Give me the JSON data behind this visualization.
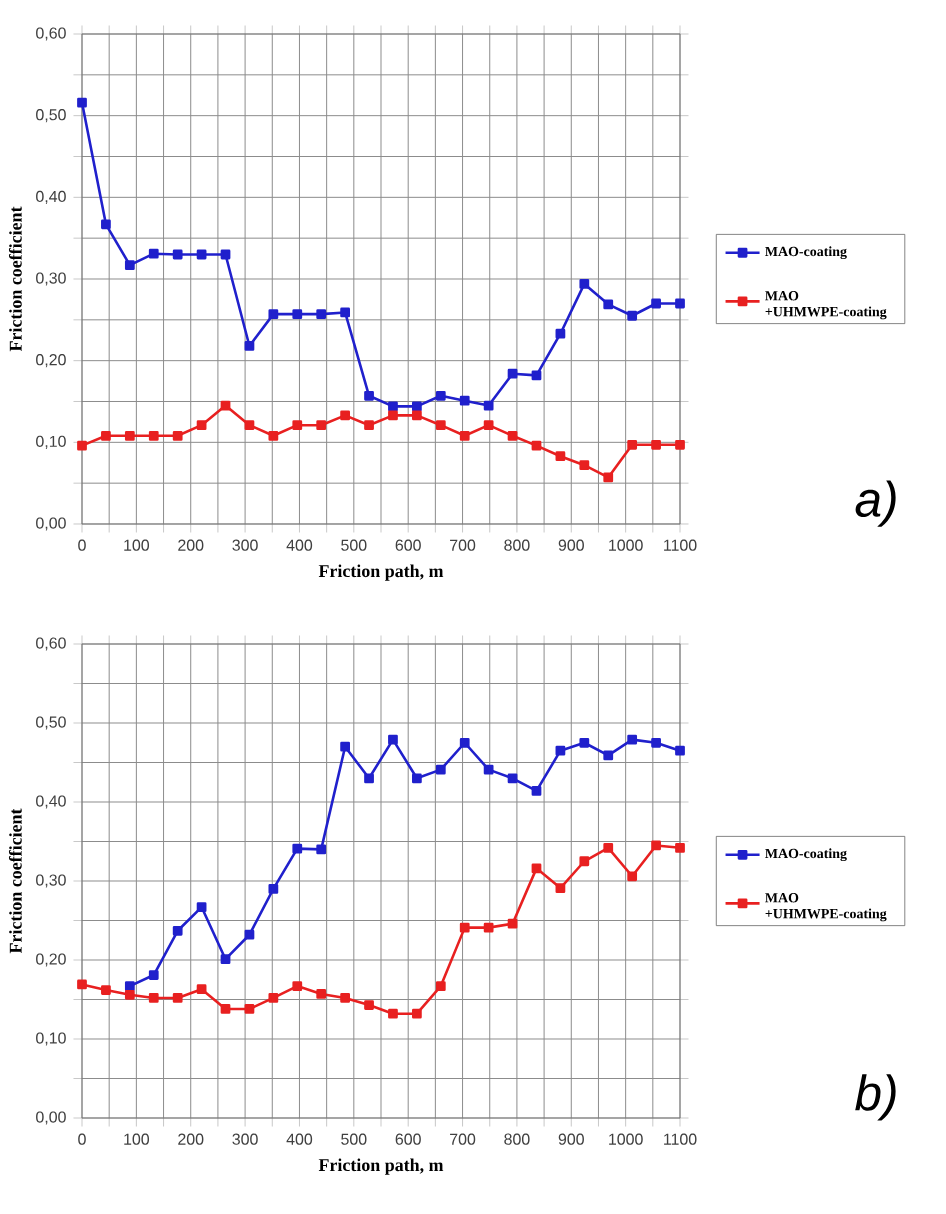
{
  "chart_data": [
    {
      "type": "line",
      "xlabel": "Friction path, m",
      "ylabel": "Friction coefficient",
      "annotations": [
        "a)"
      ],
      "x": [
        0,
        44,
        88,
        132,
        176,
        220,
        264,
        308,
        352,
        396,
        440,
        484,
        528,
        572,
        616,
        660,
        704,
        748,
        792,
        836,
        880,
        924,
        968,
        1012,
        1056,
        1100
      ],
      "series": [
        {
          "name": "MAO-coating",
          "color": "#2020cc",
          "values": [
            0.516,
            0.367,
            0.317,
            0.331,
            0.33,
            0.33,
            0.33,
            0.218,
            0.257,
            0.257,
            0.257,
            0.259,
            0.157,
            0.144,
            0.144,
            0.157,
            0.151,
            0.145,
            0.184,
            0.182,
            0.233,
            0.294,
            0.269,
            0.255,
            0.27,
            0.27
          ]
        },
        {
          "name": "MAO +UHMWPE-coating",
          "color": "#e82020",
          "values": [
            0.096,
            0.108,
            0.108,
            0.108,
            0.108,
            0.121,
            0.145,
            0.121,
            0.108,
            0.121,
            0.121,
            0.133,
            0.121,
            0.133,
            0.133,
            0.121,
            0.108,
            0.121,
            0.108,
            0.096,
            0.083,
            0.072,
            0.057,
            0.097,
            0.097,
            0.097
          ]
        }
      ],
      "xlim": [
        0,
        1100
      ],
      "xticks": [
        0,
        {
          "value": 50,
          "label": null
        },
        100,
        {
          "value": 150,
          "label": null
        },
        200,
        {
          "value": 250,
          "label": null
        },
        300,
        {
          "value": 350,
          "label": null
        },
        400,
        {
          "value": 450,
          "label": null
        },
        500,
        {
          "value": 550,
          "label": null
        },
        600,
        {
          "value": 650,
          "label": null
        },
        700,
        {
          "value": 750,
          "label": null
        },
        800,
        {
          "value": 850,
          "label": null
        },
        900,
        {
          "value": 950,
          "label": null
        },
        1000,
        {
          "value": 1050,
          "label": null
        },
        1100
      ],
      "ylim": [
        0,
        0.6
      ],
      "yticks": [
        {
          "value": 0,
          "label": "0,00"
        },
        {
          "value": 0.05,
          "label": null
        },
        {
          "value": 0.1,
          "label": "0,10"
        },
        {
          "value": 0.15,
          "label": null
        },
        {
          "value": 0.2,
          "label": "0,20"
        },
        {
          "value": 0.25,
          "label": null
        },
        {
          "value": 0.3,
          "label": "0,30"
        },
        {
          "value": 0.35,
          "label": null
        },
        {
          "value": 0.4,
          "label": "0,40"
        },
        {
          "value": 0.45,
          "label": null
        },
        {
          "value": 0.5,
          "label": "0,50"
        },
        {
          "value": 0.55,
          "label": null
        },
        {
          "value": 0.6,
          "label": "0,60"
        }
      ],
      "grid": true,
      "legend": "right",
      "marker": "square",
      "line_style": "solid"
    },
    {
      "type": "line",
      "xlabel": "Friction path, m",
      "ylabel": "Friction coefficient",
      "annotations": [
        "b)"
      ],
      "x": [
        0,
        44,
        88,
        132,
        176,
        220,
        264,
        308,
        352,
        396,
        440,
        484,
        528,
        572,
        616,
        660,
        704,
        748,
        792,
        836,
        880,
        924,
        968,
        1012,
        1056,
        1100
      ],
      "series": [
        {
          "name": "MAO-coating",
          "color": "#2020cc",
          "values": [
            null,
            null,
            0.167,
            0.181,
            0.237,
            0.267,
            0.201,
            0.232,
            0.29,
            0.341,
            0.34,
            0.47,
            0.43,
            0.479,
            0.43,
            0.441,
            0.475,
            0.441,
            0.43,
            0.414,
            0.465,
            0.475,
            0.459,
            0.479,
            0.475,
            0.465
          ]
        },
        {
          "name": "MAO +UHMWPE-coating",
          "color": "#e82020",
          "values": [
            0.169,
            0.162,
            0.156,
            0.152,
            0.152,
            0.163,
            0.138,
            0.138,
            0.152,
            0.167,
            0.157,
            0.152,
            0.143,
            0.132,
            0.132,
            0.167,
            0.241,
            0.241,
            0.246,
            0.316,
            0.291,
            0.325,
            0.342,
            0.306,
            0.345,
            0.342
          ]
        }
      ],
      "xlim": [
        0,
        1100
      ],
      "xticks": [
        0,
        {
          "value": 50,
          "label": null
        },
        100,
        {
          "value": 150,
          "label": null
        },
        200,
        {
          "value": 250,
          "label": null
        },
        300,
        {
          "value": 350,
          "label": null
        },
        400,
        {
          "value": 450,
          "label": null
        },
        500,
        {
          "value": 550,
          "label": null
        },
        600,
        {
          "value": 650,
          "label": null
        },
        700,
        {
          "value": 750,
          "label": null
        },
        800,
        {
          "value": 850,
          "label": null
        },
        900,
        {
          "value": 950,
          "label": null
        },
        1000,
        {
          "value": 1050,
          "label": null
        },
        1100
      ],
      "ylim": [
        0,
        0.6
      ],
      "yticks": [
        {
          "value": 0,
          "label": "0,00"
        },
        {
          "value": 0.05,
          "label": null
        },
        {
          "value": 0.1,
          "label": "0,10"
        },
        {
          "value": 0.15,
          "label": null
        },
        {
          "value": 0.2,
          "label": "0,20"
        },
        {
          "value": 0.25,
          "label": null
        },
        {
          "value": 0.3,
          "label": "0,30"
        },
        {
          "value": 0.35,
          "label": null
        },
        {
          "value": 0.4,
          "label": "0,40"
        },
        {
          "value": 0.45,
          "label": null
        },
        {
          "value": 0.5,
          "label": "0,50"
        },
        {
          "value": 0.55,
          "label": null
        },
        {
          "value": 0.6,
          "label": "0,60"
        }
      ],
      "grid": true,
      "legend": "right",
      "marker": "square",
      "line_style": "solid"
    }
  ]
}
